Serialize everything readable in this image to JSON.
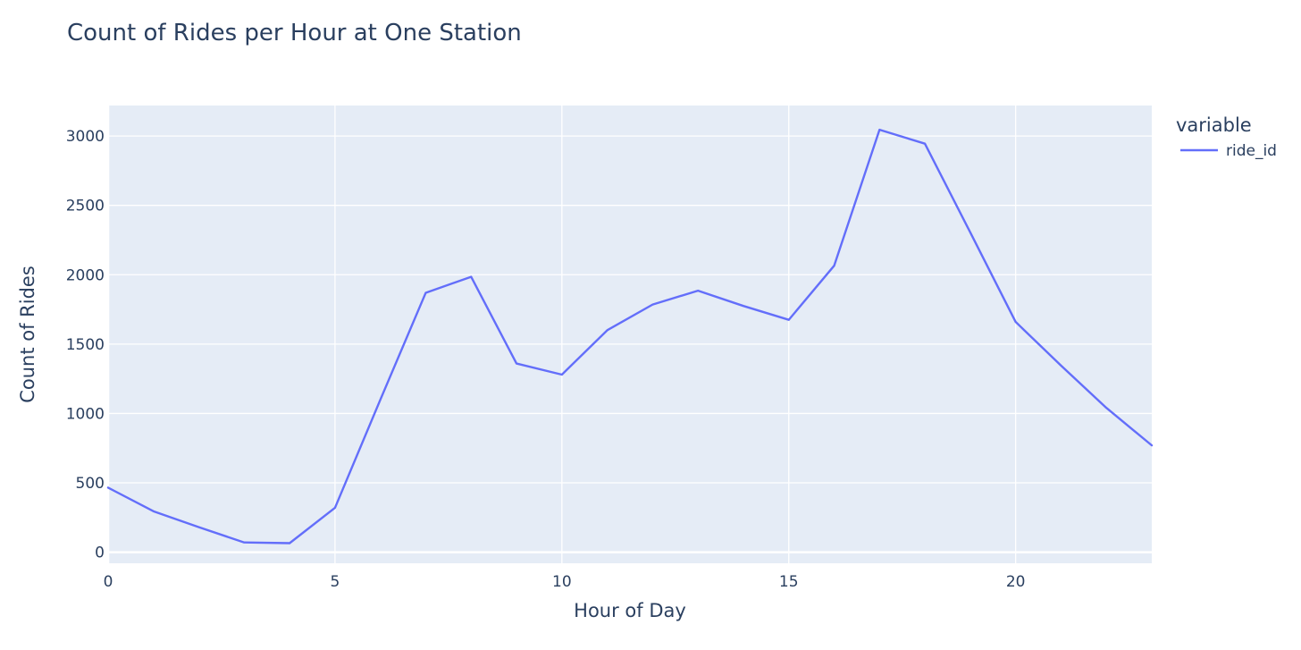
{
  "chart_data": {
    "type": "line",
    "title": "Count of Rides per Hour at One Station",
    "xlabel": "Hour of Day",
    "ylabel": "Count of Rides",
    "xlim": [
      0,
      23
    ],
    "ylim": [
      -80,
      3220
    ],
    "x_ticks": [
      0,
      5,
      10,
      15,
      20
    ],
    "y_ticks": [
      0,
      500,
      1000,
      1500,
      2000,
      2500,
      3000
    ],
    "grid": true,
    "legend": {
      "title": "variable",
      "placement": "top-right"
    },
    "x": [
      0,
      1,
      2,
      3,
      4,
      5,
      6,
      7,
      8,
      9,
      10,
      11,
      12,
      13,
      14,
      15,
      16,
      17,
      18,
      19,
      20,
      21,
      22,
      23
    ],
    "series": [
      {
        "name": "ride_id",
        "color": "#636efa",
        "values": [
          465,
          295,
          180,
          70,
          65,
          320,
          1100,
          1870,
          1985,
          1360,
          1280,
          1600,
          1785,
          1885,
          1775,
          1675,
          2065,
          3045,
          2945,
          2305,
          1660,
          1345,
          1040,
          770
        ]
      }
    ]
  }
}
